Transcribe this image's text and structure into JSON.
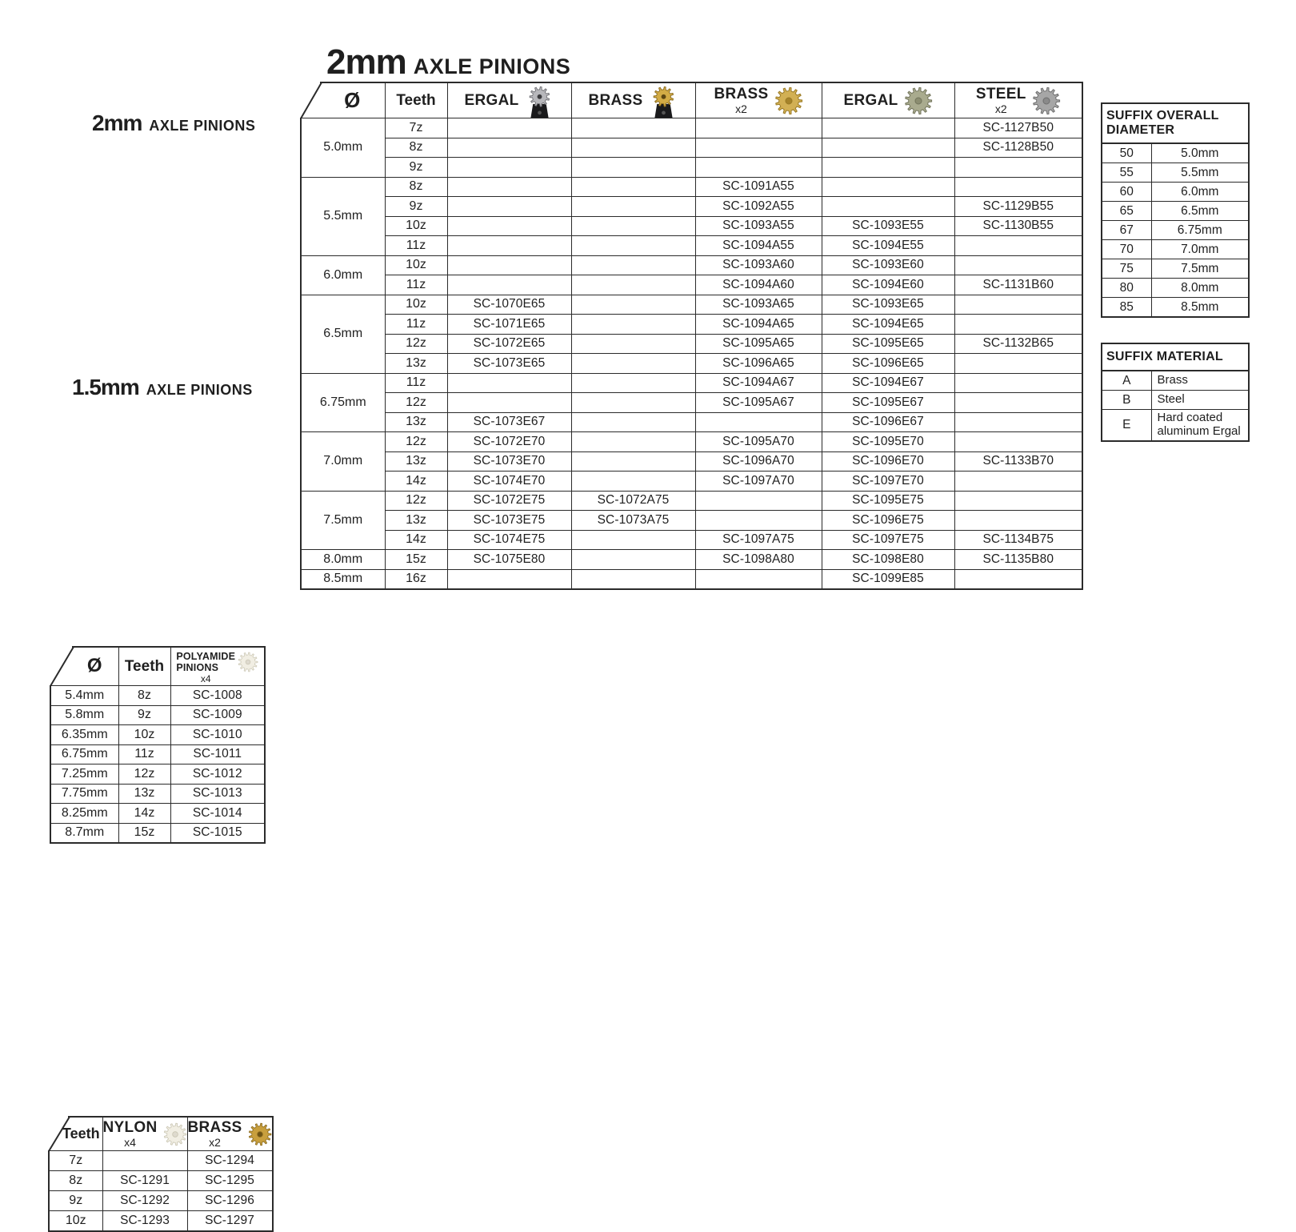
{
  "page": {
    "background": "#ffffff",
    "border_color": "#2b2b2b",
    "text_color": "#1f1f1f"
  },
  "icons": {
    "polyamide-gear": {
      "type": "gear",
      "body": "#f1eee3",
      "shade": "#c9c5b2",
      "hole": "#dedace"
    },
    "nylon-gear": {
      "type": "gear",
      "body": "#f1eee3",
      "shade": "#c9c5b2",
      "hole": "#dedace"
    },
    "brass-gear-small": {
      "type": "gear",
      "body": "#c89f3d",
      "shade": "#8a6a1e",
      "hole": "#6d5315"
    },
    "ergal-pinion": {
      "type": "pinion",
      "body": "#b7b7bb",
      "shade": "#6f6f74",
      "hole": "#3a3a3d",
      "base": "#1a1a1c"
    },
    "brass-pinion": {
      "type": "pinion",
      "body": "#d2ab45",
      "shade": "#8a6a1e",
      "hole": "#5c4612",
      "base": "#1a1a1c"
    },
    "brass-gear": {
      "type": "gear",
      "body": "#d2b054",
      "shade": "#9a7a25",
      "hole": "#a5832a"
    },
    "ergal-gear": {
      "type": "gear",
      "body": "#a9ab8e",
      "shade": "#73755c",
      "hole": "#8b8d70"
    },
    "steel-gear": {
      "type": "gear",
      "body": "#a6a6a6",
      "shade": "#6f6f6f",
      "hole": "#8a8a8a"
    }
  },
  "left_table_2mm": {
    "title_big": "2mm",
    "title_small": "AXLE PINIONS",
    "col_diameter": "Ø",
    "col_teeth": "Teeth",
    "product_line1": "POLYAMIDE",
    "product_line2": "PINIONS",
    "product_qty": "x4",
    "product_icon": "polyamide-gear",
    "rows": [
      {
        "d": "5.4mm",
        "t": "8z",
        "p": "SC-1008"
      },
      {
        "d": "5.8mm",
        "t": "9z",
        "p": "SC-1009"
      },
      {
        "d": "6.35mm",
        "t": "10z",
        "p": "SC-1010"
      },
      {
        "d": "6.75mm",
        "t": "11z",
        "p": "SC-1011"
      },
      {
        "d": "7.25mm",
        "t": "12z",
        "p": "SC-1012"
      },
      {
        "d": "7.75mm",
        "t": "13z",
        "p": "SC-1013"
      },
      {
        "d": "8.25mm",
        "t": "14z",
        "p": "SC-1014"
      },
      {
        "d": "8.7mm",
        "t": "15z",
        "p": "SC-1015"
      }
    ]
  },
  "table_15mm": {
    "title_big": "1.5mm",
    "title_small": "AXLE PINIONS",
    "col_teeth": "Teeth",
    "columns": [
      {
        "label": "NYLON",
        "qty": "x4",
        "icon": "nylon-gear"
      },
      {
        "label": "BRASS",
        "qty": "x2",
        "icon": "brass-gear-small"
      }
    ],
    "rows": [
      {
        "t": "7z",
        "cells": [
          "",
          "SC-1294"
        ]
      },
      {
        "t": "8z",
        "cells": [
          "SC-1291",
          "SC-1295"
        ]
      },
      {
        "t": "9z",
        "cells": [
          "SC-1292",
          "SC-1296"
        ]
      },
      {
        "t": "10z",
        "cells": [
          "SC-1293",
          "SC-1297"
        ]
      }
    ]
  },
  "main_table": {
    "title_big": "2mm",
    "title_small": "AXLE PINIONS",
    "col_diameter": "Ø",
    "col_teeth": "Teeth",
    "columns": [
      {
        "label": "ERGAL",
        "qty": "",
        "icon": "ergal-pinion"
      },
      {
        "label": "BRASS",
        "qty": "",
        "icon": "brass-pinion"
      },
      {
        "label": "BRASS",
        "qty": "x2",
        "icon": "brass-gear"
      },
      {
        "label": "ERGAL",
        "qty": "",
        "icon": "ergal-gear"
      },
      {
        "label": "STEEL",
        "qty": "x2",
        "icon": "steel-gear"
      }
    ],
    "groups": [
      {
        "diameter": "5.0mm",
        "rows": [
          {
            "teeth": "7z",
            "cells": [
              "",
              "",
              "",
              "",
              "SC-1127B50"
            ]
          },
          {
            "teeth": "8z",
            "cells": [
              "",
              "",
              "",
              "",
              "SC-1128B50"
            ]
          },
          {
            "teeth": "9z",
            "cells": [
              "",
              "",
              "",
              "",
              ""
            ]
          }
        ]
      },
      {
        "diameter": "5.5mm",
        "rows": [
          {
            "teeth": "8z",
            "cells": [
              "",
              "",
              "SC-1091A55",
              "",
              ""
            ]
          },
          {
            "teeth": "9z",
            "cells": [
              "",
              "",
              "SC-1092A55",
              "",
              "SC-1129B55"
            ]
          },
          {
            "teeth": "10z",
            "cells": [
              "",
              "",
              "SC-1093A55",
              "SC-1093E55",
              "SC-1130B55"
            ]
          },
          {
            "teeth": "11z",
            "cells": [
              "",
              "",
              "SC-1094A55",
              "SC-1094E55",
              ""
            ]
          }
        ]
      },
      {
        "diameter": "6.0mm",
        "rows": [
          {
            "teeth": "10z",
            "cells": [
              "",
              "",
              "SC-1093A60",
              "SC-1093E60",
              ""
            ]
          },
          {
            "teeth": "11z",
            "cells": [
              "",
              "",
              "SC-1094A60",
              "SC-1094E60",
              "SC-1131B60"
            ]
          }
        ]
      },
      {
        "diameter": "6.5mm",
        "rows": [
          {
            "teeth": "10z",
            "cells": [
              "SC-1070E65",
              "",
              "SC-1093A65",
              "SC-1093E65",
              ""
            ]
          },
          {
            "teeth": "11z",
            "cells": [
              "SC-1071E65",
              "",
              "SC-1094A65",
              "SC-1094E65",
              ""
            ]
          },
          {
            "teeth": "12z",
            "cells": [
              "SC-1072E65",
              "",
              "SC-1095A65",
              "SC-1095E65",
              "SC-1132B65"
            ]
          },
          {
            "teeth": "13z",
            "cells": [
              "SC-1073E65",
              "",
              "SC-1096A65",
              "SC-1096E65",
              ""
            ]
          }
        ]
      },
      {
        "diameter": "6.75mm",
        "rows": [
          {
            "teeth": "11z",
            "cells": [
              "",
              "",
              "SC-1094A67",
              "SC-1094E67",
              ""
            ]
          },
          {
            "teeth": "12z",
            "cells": [
              "",
              "",
              "SC-1095A67",
              "SC-1095E67",
              ""
            ]
          },
          {
            "teeth": "13z",
            "cells": [
              "SC-1073E67",
              "",
              "",
              "SC-1096E67",
              ""
            ]
          }
        ]
      },
      {
        "diameter": "7.0mm",
        "rows": [
          {
            "teeth": "12z",
            "cells": [
              "SC-1072E70",
              "",
              "SC-1095A70",
              "SC-1095E70",
              ""
            ]
          },
          {
            "teeth": "13z",
            "cells": [
              "SC-1073E70",
              "",
              "SC-1096A70",
              "SC-1096E70",
              "SC-1133B70"
            ]
          },
          {
            "teeth": "14z",
            "cells": [
              "SC-1074E70",
              "",
              "SC-1097A70",
              "SC-1097E70",
              ""
            ]
          }
        ]
      },
      {
        "diameter": "7.5mm",
        "rows": [
          {
            "teeth": "12z",
            "cells": [
              "SC-1072E75",
              "SC-1072A75",
              "",
              "SC-1095E75",
              ""
            ]
          },
          {
            "teeth": "13z",
            "cells": [
              "SC-1073E75",
              "SC-1073A75",
              "",
              "SC-1096E75",
              ""
            ]
          },
          {
            "teeth": "14z",
            "cells": [
              "SC-1074E75",
              "",
              "SC-1097A75",
              "SC-1097E75",
              "SC-1134B75"
            ]
          }
        ]
      },
      {
        "diameter": "8.0mm",
        "rows": [
          {
            "teeth": "15z",
            "cells": [
              "SC-1075E80",
              "",
              "SC-1098A80",
              "SC-1098E80",
              "SC-1135B80"
            ]
          }
        ]
      },
      {
        "diameter": "8.5mm",
        "rows": [
          {
            "teeth": "16z",
            "cells": [
              "",
              "",
              "",
              "SC-1099E85",
              ""
            ]
          }
        ]
      }
    ]
  },
  "suffix_diameter": {
    "title": "SUFFIX OVERALL DIAMETER",
    "rows": [
      [
        "50",
        "5.0mm"
      ],
      [
        "55",
        "5.5mm"
      ],
      [
        "60",
        "6.0mm"
      ],
      [
        "65",
        "6.5mm"
      ],
      [
        "67",
        "6.75mm"
      ],
      [
        "70",
        "7.0mm"
      ],
      [
        "75",
        "7.5mm"
      ],
      [
        "80",
        "8.0mm"
      ],
      [
        "85",
        "8.5mm"
      ]
    ]
  },
  "suffix_material": {
    "title": "SUFFIX MATERIAL",
    "rows": [
      [
        "A",
        "Brass"
      ],
      [
        "B",
        "Steel"
      ],
      [
        "E",
        "Hard coated aluminum Ergal"
      ]
    ]
  }
}
